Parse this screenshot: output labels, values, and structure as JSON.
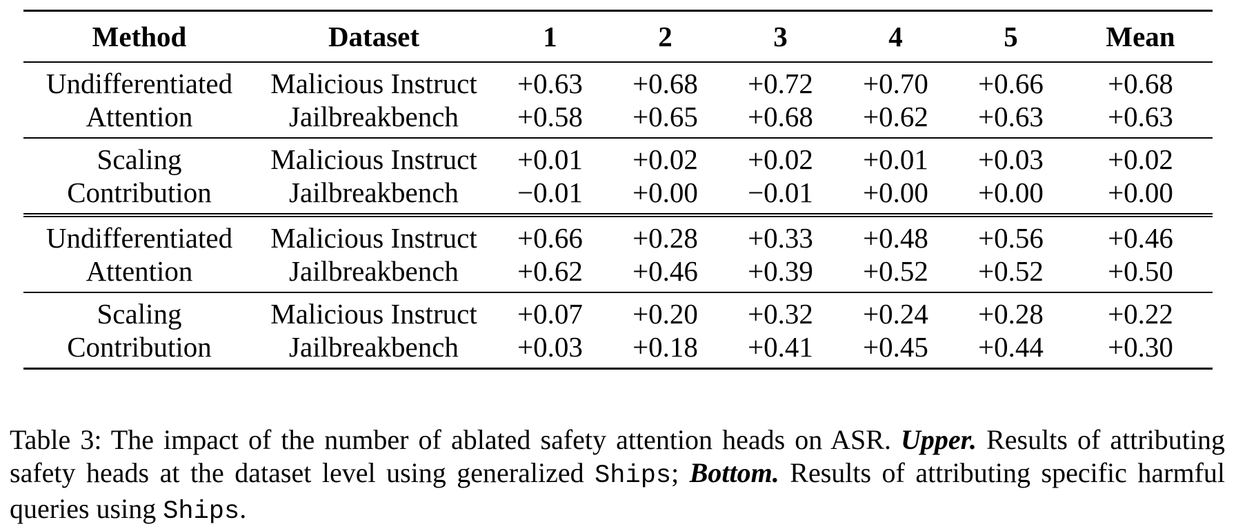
{
  "table": {
    "headers": [
      "Method",
      "Dataset",
      "1",
      "2",
      "3",
      "4",
      "5",
      "Mean"
    ],
    "groups": [
      {
        "method_line1": "Undifferentiated",
        "method_line2": "Attention",
        "rows": [
          {
            "dataset": "Malicious Instruct",
            "values": [
              "+0.63",
              "+0.68",
              "+0.72",
              "+0.70",
              "+0.66",
              "+0.68"
            ]
          },
          {
            "dataset": "Jailbreakbench",
            "values": [
              "+0.58",
              "+0.65",
              "+0.68",
              "+0.62",
              "+0.63",
              "+0.63"
            ]
          }
        ]
      },
      {
        "method_line1": "Scaling",
        "method_line2": "Contribution",
        "rows": [
          {
            "dataset": "Malicious Instruct",
            "values": [
              "+0.01",
              "+0.02",
              "+0.02",
              "+0.01",
              "+0.03",
              "+0.02"
            ]
          },
          {
            "dataset": "Jailbreakbench",
            "values": [
              "−0.01",
              "+0.00",
              "−0.01",
              "+0.00",
              "+0.00",
              "+0.00"
            ]
          }
        ]
      },
      {
        "method_line1": "Undifferentiated",
        "method_line2": "Attention",
        "rows": [
          {
            "dataset": "Malicious Instruct",
            "values": [
              "+0.66",
              "+0.28",
              "+0.33",
              "+0.48",
              "+0.56",
              "+0.46"
            ]
          },
          {
            "dataset": "Jailbreakbench",
            "values": [
              "+0.62",
              "+0.46",
              "+0.39",
              "+0.52",
              "+0.52",
              "+0.50"
            ]
          }
        ]
      },
      {
        "method_line1": "Scaling",
        "method_line2": "Contribution",
        "rows": [
          {
            "dataset": "Malicious Instruct",
            "values": [
              "+0.07",
              "+0.20",
              "+0.32",
              "+0.24",
              "+0.28",
              "+0.22"
            ]
          },
          {
            "dataset": "Jailbreakbench",
            "values": [
              "+0.03",
              "+0.18",
              "+0.41",
              "+0.45",
              "+0.44",
              "+0.30"
            ]
          }
        ]
      }
    ]
  },
  "caption": {
    "p1": "Table 3: The impact of the number of ablated safety attention heads on ASR. ",
    "upper_label": "Upper.",
    "p2": " Results of attributing safety heads at the dataset level using generalized ",
    "ships1": "Ships",
    "p3": "; ",
    "bottom_label": "Bottom.",
    "p4": " Results of attributing specific harmful queries using ",
    "ships2": "Ships",
    "p5": "."
  }
}
